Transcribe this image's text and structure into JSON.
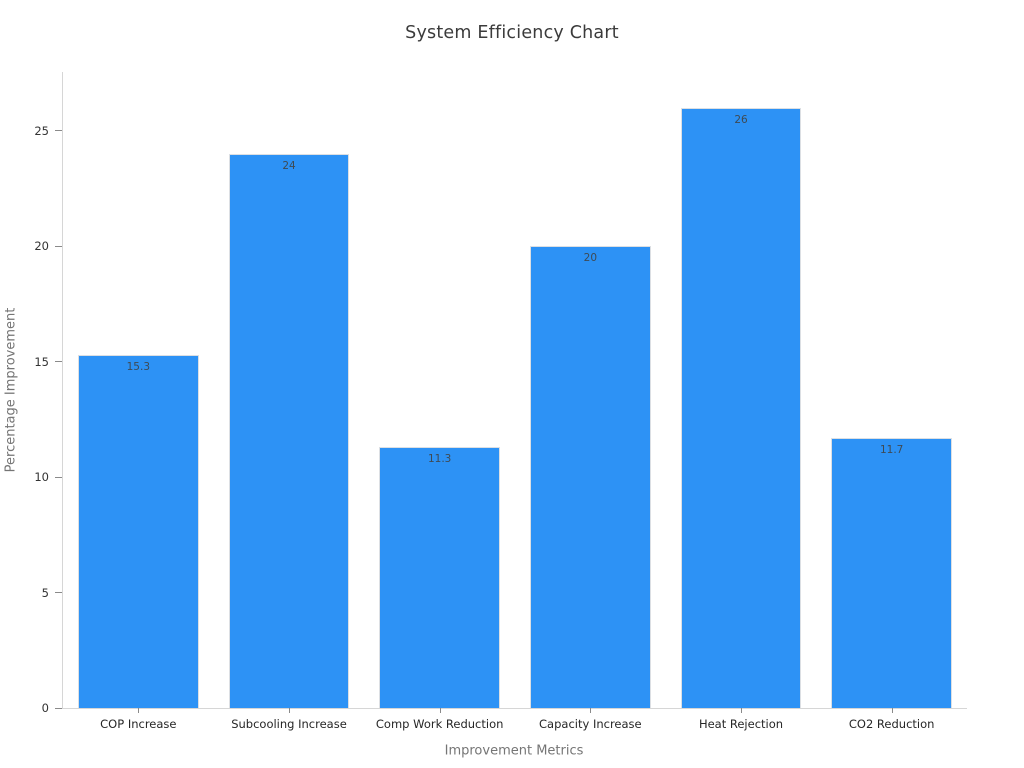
{
  "chart_data": {
    "type": "bar",
    "title": "System Efficiency Chart",
    "xlabel": "Improvement Metrics",
    "ylabel": "Percentage Improvement",
    "categories": [
      "COP Increase",
      "Subcooling Increase",
      "Comp Work Reduction",
      "Capacity Increase",
      "Heat Rejection",
      "CO2 Reduction"
    ],
    "values": [
      15.3,
      24,
      11.3,
      20,
      26,
      11.7
    ],
    "value_labels": [
      "15.3",
      "24",
      "11.3",
      "20",
      "26",
      "11.7"
    ],
    "yticks": [
      0,
      5,
      10,
      15,
      20,
      25
    ],
    "ylim": [
      0,
      27.55
    ],
    "grid": false,
    "legend": false,
    "bar_relative_width": 0.8,
    "colors": {
      "bar_fill": "#2d92f5",
      "bar_edge": "#dcdfe3",
      "spine": "#d6d6d6",
      "tick_mark": "#8a8a8a",
      "tick_label": "#333333",
      "category_label": "#262626",
      "axis_title": "#757575",
      "value_label": "#3e4a54",
      "title": "#3b3b3b",
      "background": "#ffffff"
    }
  }
}
